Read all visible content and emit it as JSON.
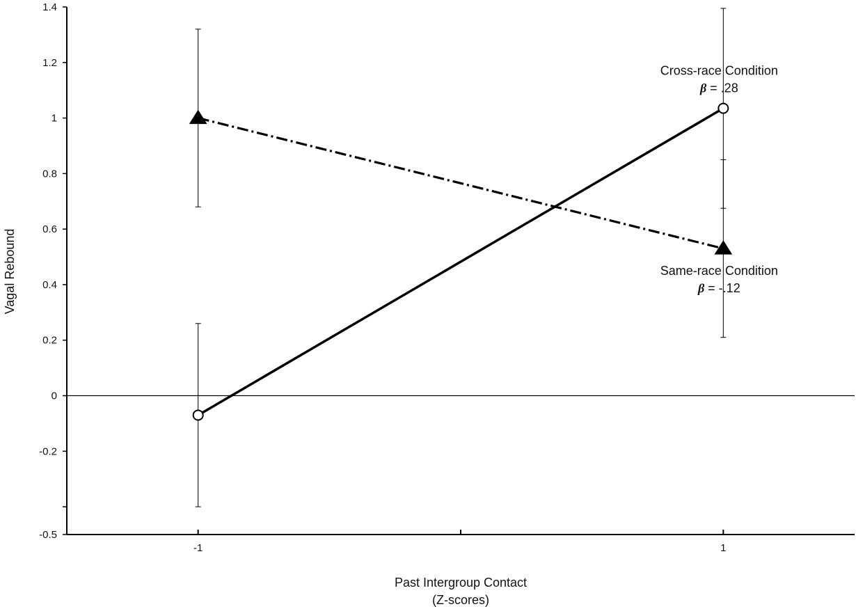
{
  "chart_data": {
    "type": "line",
    "title": "",
    "xlabel": "Past Intergroup Contact",
    "xlabel_line2": "(Z-scores)",
    "ylabel": "Vagal Rebound",
    "xlim": [
      -1.5,
      1.5
    ],
    "ylim": [
      -0.5,
      1.4
    ],
    "x_ticks": [
      {
        "value": -1,
        "label": "-1"
      },
      {
        "value": 0,
        "label": ""
      },
      {
        "value": 1,
        "label": "1"
      }
    ],
    "y_ticks": [
      {
        "value": -0.5,
        "label": "-0.5"
      },
      {
        "value": -0.4,
        "label": ""
      },
      {
        "value": -0.2,
        "label": "-0.2"
      },
      {
        "value": 0,
        "label": "0"
      },
      {
        "value": 0.2,
        "label": "0.2"
      },
      {
        "value": 0.4,
        "label": "0.4"
      },
      {
        "value": 0.6,
        "label": "0.6"
      },
      {
        "value": 0.8,
        "label": "0.8"
      },
      {
        "value": 1.0,
        "label": "1"
      },
      {
        "value": 1.2,
        "label": "1.2"
      },
      {
        "value": 1.4,
        "label": "1.4"
      }
    ],
    "zero_line": true,
    "grid": false,
    "series": [
      {
        "key": "cross",
        "marker": "open-circle",
        "line": "solid",
        "x": [
          -1,
          1
        ],
        "y": [
          -0.07,
          1.035
        ],
        "err_low": [
          -0.4,
          0.675
        ],
        "err_high": [
          0.26,
          1.395
        ],
        "annotation": {
          "line1": "Cross-race Condition",
          "beta_symbol": "β",
          "beta_text": " = .28"
        }
      },
      {
        "key": "same",
        "marker": "filled-triangle",
        "line": "dash-dot",
        "x": [
          -1,
          1
        ],
        "y": [
          1.0,
          0.53
        ],
        "err_low": [
          0.68,
          0.21
        ],
        "err_high": [
          1.32,
          0.85
        ],
        "annotation": {
          "line1": "Same-race Condition",
          "beta_symbol": "β",
          "beta_text": " = -.12"
        }
      }
    ]
  }
}
